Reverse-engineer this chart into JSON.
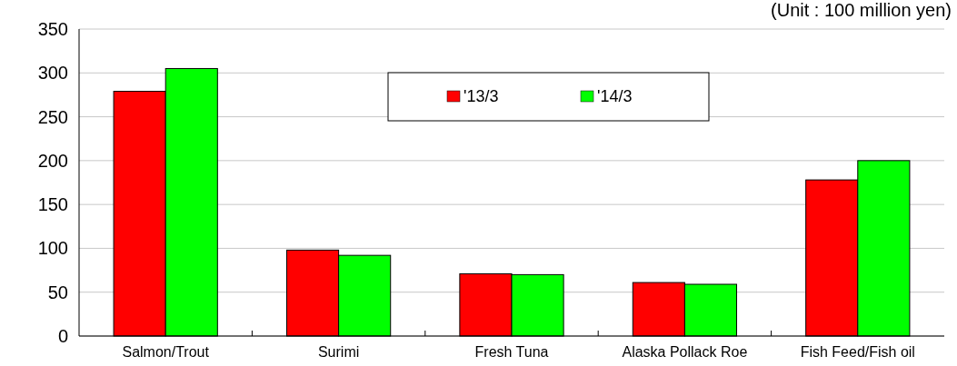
{
  "chart_data": {
    "type": "bar",
    "annotations": [
      "(Unit : 100 million yen)"
    ],
    "categories": [
      "Salmon/Trout",
      "Surimi",
      "Fresh Tuna",
      "Alaska Pollack Roe",
      "Fish Feed/Fish oil"
    ],
    "series": [
      {
        "name": "'13/3",
        "color": "#ff0000",
        "values": [
          279,
          98,
          71,
          61,
          178
        ]
      },
      {
        "name": "'14/3",
        "color": "#00ff00",
        "values": [
          305,
          92,
          70,
          59,
          200
        ]
      }
    ],
    "ylim": [
      0,
      350
    ],
    "yticks": [
      0,
      50,
      100,
      150,
      200,
      250,
      300,
      350
    ],
    "grid": "y",
    "legend": "top"
  }
}
